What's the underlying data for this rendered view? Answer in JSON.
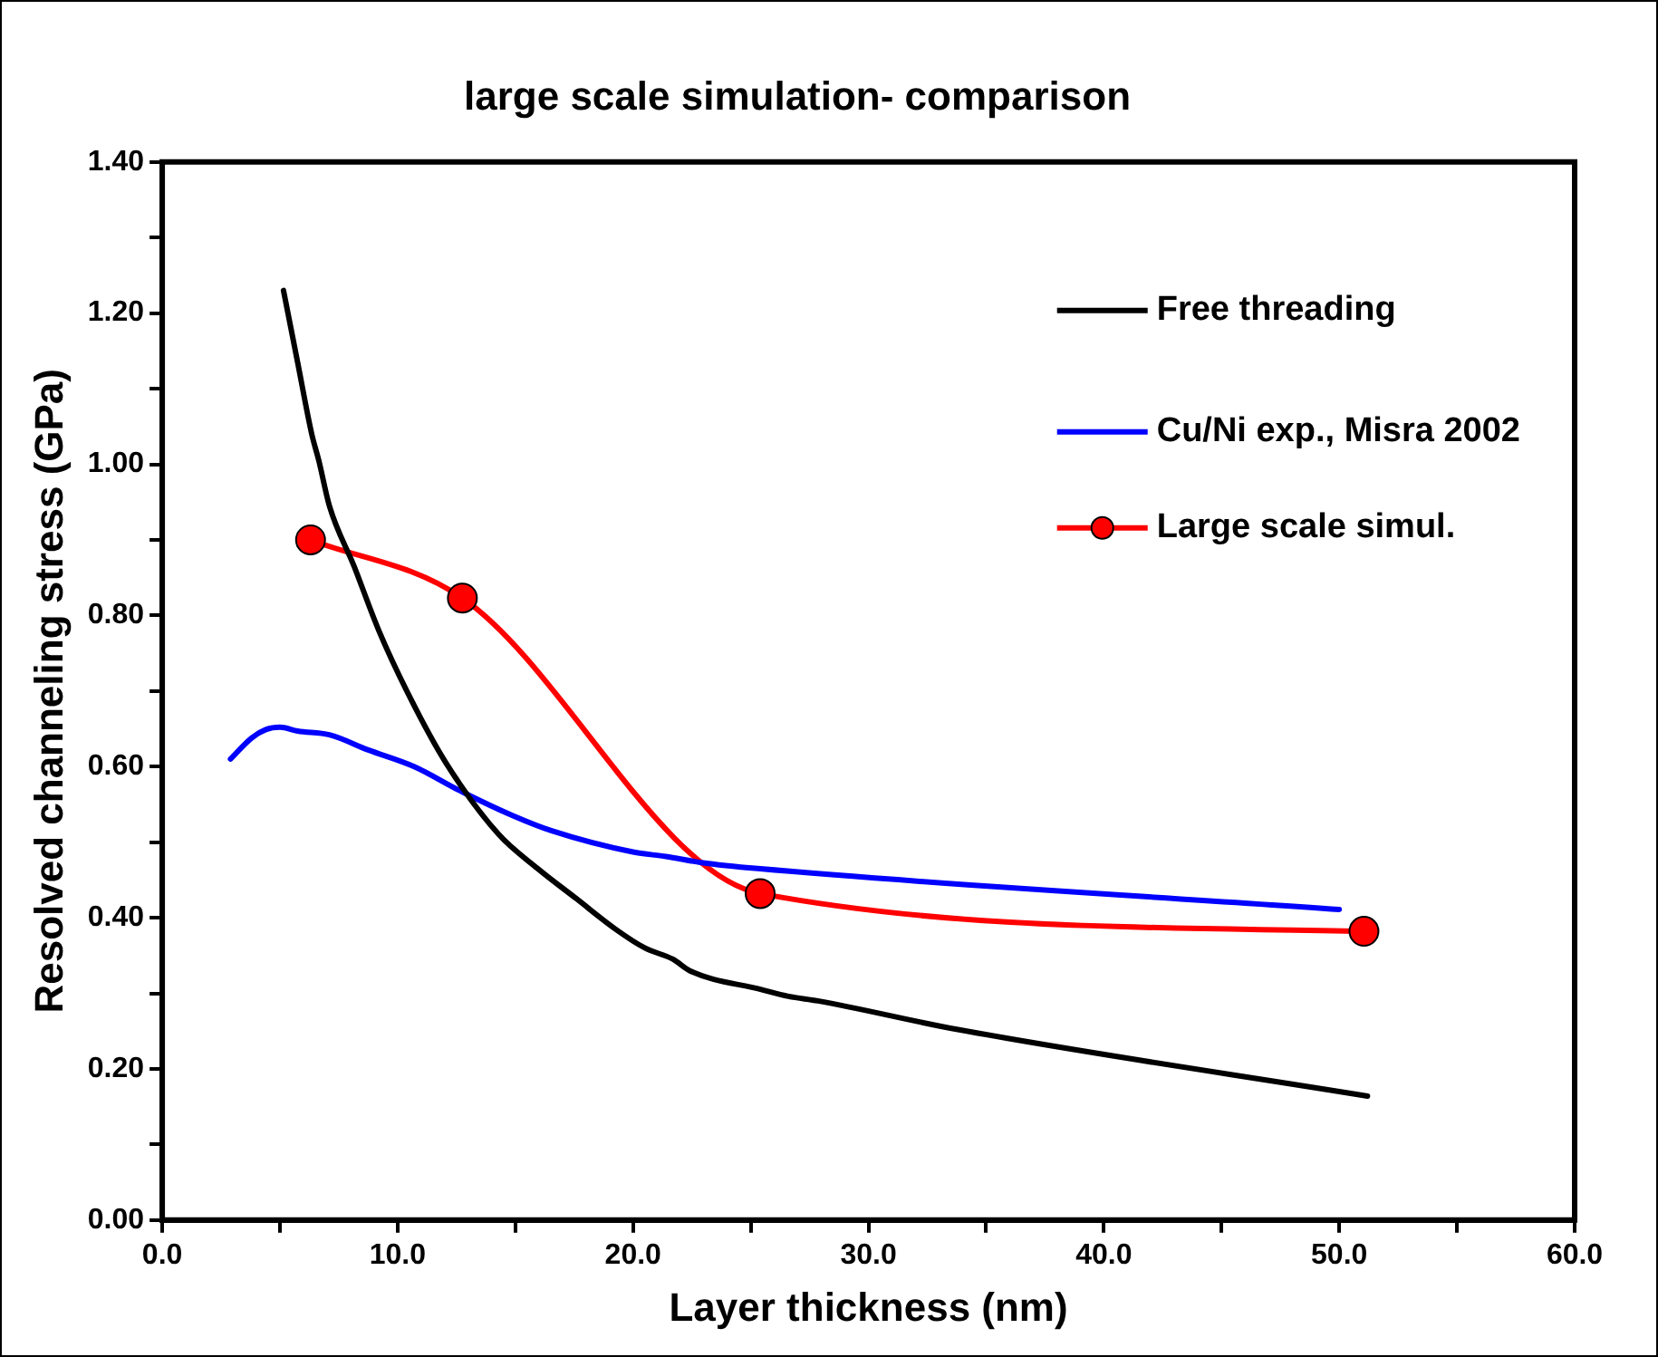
{
  "chart_data": {
    "type": "line",
    "title": "large scale simulation- comparison",
    "xlabel": "Layer thickness (nm)",
    "ylabel": "Resolved channeling stress (GPa)",
    "xlim": [
      0,
      60
    ],
    "ylim": [
      0,
      1.4
    ],
    "xticks": [
      {
        "value": 0,
        "label": "0.0"
      },
      {
        "value": 5,
        "label": null
      },
      {
        "value": 10,
        "label": "10.0"
      },
      {
        "value": 15,
        "label": null
      },
      {
        "value": 20,
        "label": "20.0"
      },
      {
        "value": 25,
        "label": null
      },
      {
        "value": 30,
        "label": "30.0"
      },
      {
        "value": 35,
        "label": null
      },
      {
        "value": 40,
        "label": "40.0"
      },
      {
        "value": 45,
        "label": null
      },
      {
        "value": 50,
        "label": "50.0"
      },
      {
        "value": 55,
        "label": null
      },
      {
        "value": 60,
        "label": "60.0"
      }
    ],
    "yticks": [
      {
        "value": 0,
        "label": "0.00"
      },
      {
        "value": 0.1,
        "label": null
      },
      {
        "value": 0.2,
        "label": "0.20"
      },
      {
        "value": 0.3,
        "label": null
      },
      {
        "value": 0.4,
        "label": "0.40"
      },
      {
        "value": 0.5,
        "label": null
      },
      {
        "value": 0.6,
        "label": "0.60"
      },
      {
        "value": 0.7,
        "label": null
      },
      {
        "value": 0.8,
        "label": "0.80"
      },
      {
        "value": 0.9,
        "label": null
      },
      {
        "value": 1.0,
        "label": "1.00"
      },
      {
        "value": 1.1,
        "label": null
      },
      {
        "value": 1.2,
        "label": "1.20"
      },
      {
        "value": 1.3,
        "label": null
      },
      {
        "value": 1.4,
        "label": "1.40"
      }
    ],
    "grid": false,
    "legend": "top right",
    "series": [
      {
        "name": "Free threading",
        "color": "#000000",
        "marker": "none",
        "x": [
          5.15,
          5.75,
          6.35,
          6.65,
          7.1,
          8.15,
          9.2,
          10.55,
          12.05,
          14.3,
          15.95,
          17.6,
          19.25,
          20.5,
          21.7,
          22.4,
          25.45,
          26.6,
          27.85,
          33.8,
          51.2
        ],
        "values": [
          1.23,
          1.135,
          1.04,
          1.005,
          0.945,
          0.865,
          0.78,
          0.69,
          0.605,
          0.51,
          0.465,
          0.425,
          0.385,
          0.36,
          0.345,
          0.33,
          0.305,
          0.296,
          0.29,
          0.252,
          0.164
        ]
      },
      {
        "name": "Cu/Ni exp., Misra 2002",
        "color": "#0000ff",
        "marker": "none",
        "x": [
          2.9,
          3.8,
          4.4,
          5.0,
          5.75,
          7.1,
          8.75,
          10.7,
          12.65,
          14.9,
          16.55,
          20.0,
          21.4,
          22.9,
          25.3,
          50.0
        ],
        "values": [
          0.61,
          0.638,
          0.649,
          0.652,
          0.647,
          0.642,
          0.622,
          0.6,
          0.568,
          0.535,
          0.515,
          0.487,
          0.481,
          0.473,
          0.465,
          0.411
        ]
      },
      {
        "name": "Large scale simul.",
        "color": "#ff0000",
        "marker": "circle",
        "x": [
          6.3,
          12.75,
          25.4,
          51.05
        ],
        "values": [
          0.9,
          0.823,
          0.432,
          0.382
        ]
      }
    ]
  }
}
